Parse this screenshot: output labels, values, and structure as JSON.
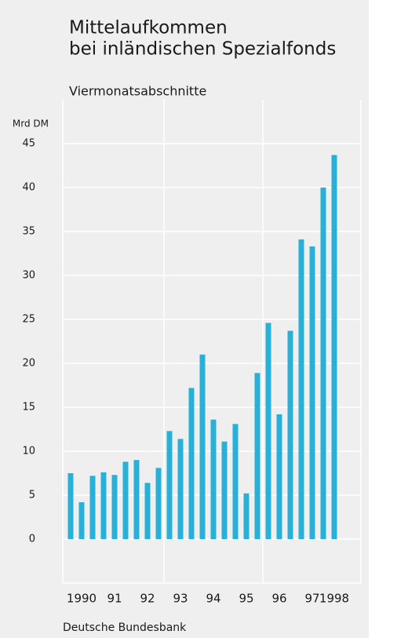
{
  "chart_data": {
    "type": "bar",
    "title": [
      "Mittelaufkommen",
      "bei inländischen Spezialfonds"
    ],
    "subtitle": "Viermonatsabschnitte",
    "y_axis_label": "Mrd DM",
    "source": "Deutsche Bundesbank",
    "categories": [
      null,
      "1990",
      null,
      null,
      "91",
      null,
      null,
      "92",
      null,
      null,
      "93",
      null,
      null,
      "94",
      null,
      null,
      "95",
      null,
      null,
      "96",
      null,
      null,
      "97",
      null,
      "1998"
    ],
    "values": [
      7.5,
      4.2,
      7.2,
      7.6,
      7.3,
      8.8,
      9.0,
      6.4,
      8.1,
      12.3,
      11.4,
      17.2,
      21.0,
      13.6,
      11.1,
      13.1,
      5.2,
      18.9,
      24.6,
      14.2,
      23.7,
      34.1,
      33.3,
      40.0,
      43.7
    ],
    "color": "#29b0d9",
    "ylim": [
      -5,
      50
    ],
    "yticks": [
      0,
      5,
      10,
      15,
      20,
      25,
      30,
      35,
      40,
      45
    ],
    "grid": true
  }
}
